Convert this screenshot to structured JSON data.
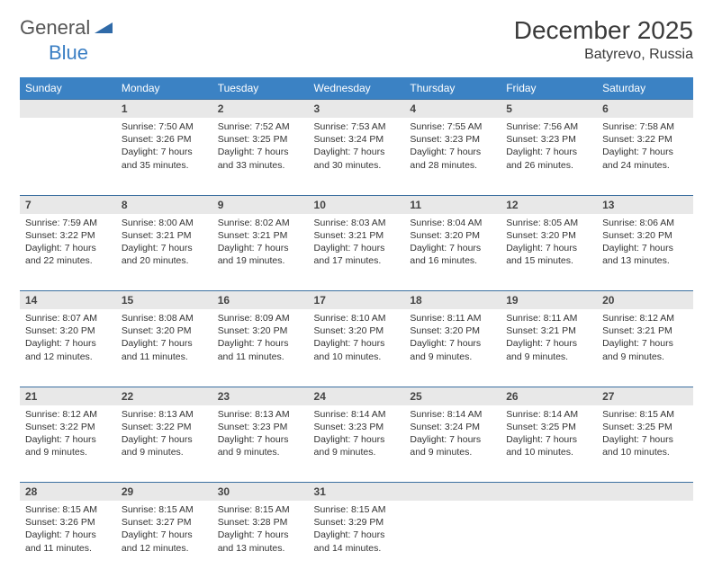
{
  "brand": {
    "part1": "General",
    "part2": "Blue"
  },
  "title": "December 2025",
  "location": "Batyrevo, Russia",
  "colors": {
    "header_bg": "#3b82c4",
    "header_text": "#ffffff",
    "daynum_bg": "#e8e8e8",
    "row_border": "#3b6fa0",
    "text": "#333333",
    "brand_gray": "#555555",
    "brand_blue": "#3b7fc4"
  },
  "weekdays": [
    "Sunday",
    "Monday",
    "Tuesday",
    "Wednesday",
    "Thursday",
    "Friday",
    "Saturday"
  ],
  "weeks": [
    [
      null,
      {
        "n": "1",
        "sr": "Sunrise: 7:50 AM",
        "ss": "Sunset: 3:26 PM",
        "d1": "Daylight: 7 hours",
        "d2": "and 35 minutes."
      },
      {
        "n": "2",
        "sr": "Sunrise: 7:52 AM",
        "ss": "Sunset: 3:25 PM",
        "d1": "Daylight: 7 hours",
        "d2": "and 33 minutes."
      },
      {
        "n": "3",
        "sr": "Sunrise: 7:53 AM",
        "ss": "Sunset: 3:24 PM",
        "d1": "Daylight: 7 hours",
        "d2": "and 30 minutes."
      },
      {
        "n": "4",
        "sr": "Sunrise: 7:55 AM",
        "ss": "Sunset: 3:23 PM",
        "d1": "Daylight: 7 hours",
        "d2": "and 28 minutes."
      },
      {
        "n": "5",
        "sr": "Sunrise: 7:56 AM",
        "ss": "Sunset: 3:23 PM",
        "d1": "Daylight: 7 hours",
        "d2": "and 26 minutes."
      },
      {
        "n": "6",
        "sr": "Sunrise: 7:58 AM",
        "ss": "Sunset: 3:22 PM",
        "d1": "Daylight: 7 hours",
        "d2": "and 24 minutes."
      }
    ],
    [
      {
        "n": "7",
        "sr": "Sunrise: 7:59 AM",
        "ss": "Sunset: 3:22 PM",
        "d1": "Daylight: 7 hours",
        "d2": "and 22 minutes."
      },
      {
        "n": "8",
        "sr": "Sunrise: 8:00 AM",
        "ss": "Sunset: 3:21 PM",
        "d1": "Daylight: 7 hours",
        "d2": "and 20 minutes."
      },
      {
        "n": "9",
        "sr": "Sunrise: 8:02 AM",
        "ss": "Sunset: 3:21 PM",
        "d1": "Daylight: 7 hours",
        "d2": "and 19 minutes."
      },
      {
        "n": "10",
        "sr": "Sunrise: 8:03 AM",
        "ss": "Sunset: 3:21 PM",
        "d1": "Daylight: 7 hours",
        "d2": "and 17 minutes."
      },
      {
        "n": "11",
        "sr": "Sunrise: 8:04 AM",
        "ss": "Sunset: 3:20 PM",
        "d1": "Daylight: 7 hours",
        "d2": "and 16 minutes."
      },
      {
        "n": "12",
        "sr": "Sunrise: 8:05 AM",
        "ss": "Sunset: 3:20 PM",
        "d1": "Daylight: 7 hours",
        "d2": "and 15 minutes."
      },
      {
        "n": "13",
        "sr": "Sunrise: 8:06 AM",
        "ss": "Sunset: 3:20 PM",
        "d1": "Daylight: 7 hours",
        "d2": "and 13 minutes."
      }
    ],
    [
      {
        "n": "14",
        "sr": "Sunrise: 8:07 AM",
        "ss": "Sunset: 3:20 PM",
        "d1": "Daylight: 7 hours",
        "d2": "and 12 minutes."
      },
      {
        "n": "15",
        "sr": "Sunrise: 8:08 AM",
        "ss": "Sunset: 3:20 PM",
        "d1": "Daylight: 7 hours",
        "d2": "and 11 minutes."
      },
      {
        "n": "16",
        "sr": "Sunrise: 8:09 AM",
        "ss": "Sunset: 3:20 PM",
        "d1": "Daylight: 7 hours",
        "d2": "and 11 minutes."
      },
      {
        "n": "17",
        "sr": "Sunrise: 8:10 AM",
        "ss": "Sunset: 3:20 PM",
        "d1": "Daylight: 7 hours",
        "d2": "and 10 minutes."
      },
      {
        "n": "18",
        "sr": "Sunrise: 8:11 AM",
        "ss": "Sunset: 3:20 PM",
        "d1": "Daylight: 7 hours",
        "d2": "and 9 minutes."
      },
      {
        "n": "19",
        "sr": "Sunrise: 8:11 AM",
        "ss": "Sunset: 3:21 PM",
        "d1": "Daylight: 7 hours",
        "d2": "and 9 minutes."
      },
      {
        "n": "20",
        "sr": "Sunrise: 8:12 AM",
        "ss": "Sunset: 3:21 PM",
        "d1": "Daylight: 7 hours",
        "d2": "and 9 minutes."
      }
    ],
    [
      {
        "n": "21",
        "sr": "Sunrise: 8:12 AM",
        "ss": "Sunset: 3:22 PM",
        "d1": "Daylight: 7 hours",
        "d2": "and 9 minutes."
      },
      {
        "n": "22",
        "sr": "Sunrise: 8:13 AM",
        "ss": "Sunset: 3:22 PM",
        "d1": "Daylight: 7 hours",
        "d2": "and 9 minutes."
      },
      {
        "n": "23",
        "sr": "Sunrise: 8:13 AM",
        "ss": "Sunset: 3:23 PM",
        "d1": "Daylight: 7 hours",
        "d2": "and 9 minutes."
      },
      {
        "n": "24",
        "sr": "Sunrise: 8:14 AM",
        "ss": "Sunset: 3:23 PM",
        "d1": "Daylight: 7 hours",
        "d2": "and 9 minutes."
      },
      {
        "n": "25",
        "sr": "Sunrise: 8:14 AM",
        "ss": "Sunset: 3:24 PM",
        "d1": "Daylight: 7 hours",
        "d2": "and 9 minutes."
      },
      {
        "n": "26",
        "sr": "Sunrise: 8:14 AM",
        "ss": "Sunset: 3:25 PM",
        "d1": "Daylight: 7 hours",
        "d2": "and 10 minutes."
      },
      {
        "n": "27",
        "sr": "Sunrise: 8:15 AM",
        "ss": "Sunset: 3:25 PM",
        "d1": "Daylight: 7 hours",
        "d2": "and 10 minutes."
      }
    ],
    [
      {
        "n": "28",
        "sr": "Sunrise: 8:15 AM",
        "ss": "Sunset: 3:26 PM",
        "d1": "Daylight: 7 hours",
        "d2": "and 11 minutes."
      },
      {
        "n": "29",
        "sr": "Sunrise: 8:15 AM",
        "ss": "Sunset: 3:27 PM",
        "d1": "Daylight: 7 hours",
        "d2": "and 12 minutes."
      },
      {
        "n": "30",
        "sr": "Sunrise: 8:15 AM",
        "ss": "Sunset: 3:28 PM",
        "d1": "Daylight: 7 hours",
        "d2": "and 13 minutes."
      },
      {
        "n": "31",
        "sr": "Sunrise: 8:15 AM",
        "ss": "Sunset: 3:29 PM",
        "d1": "Daylight: 7 hours",
        "d2": "and 14 minutes."
      },
      null,
      null,
      null
    ]
  ]
}
